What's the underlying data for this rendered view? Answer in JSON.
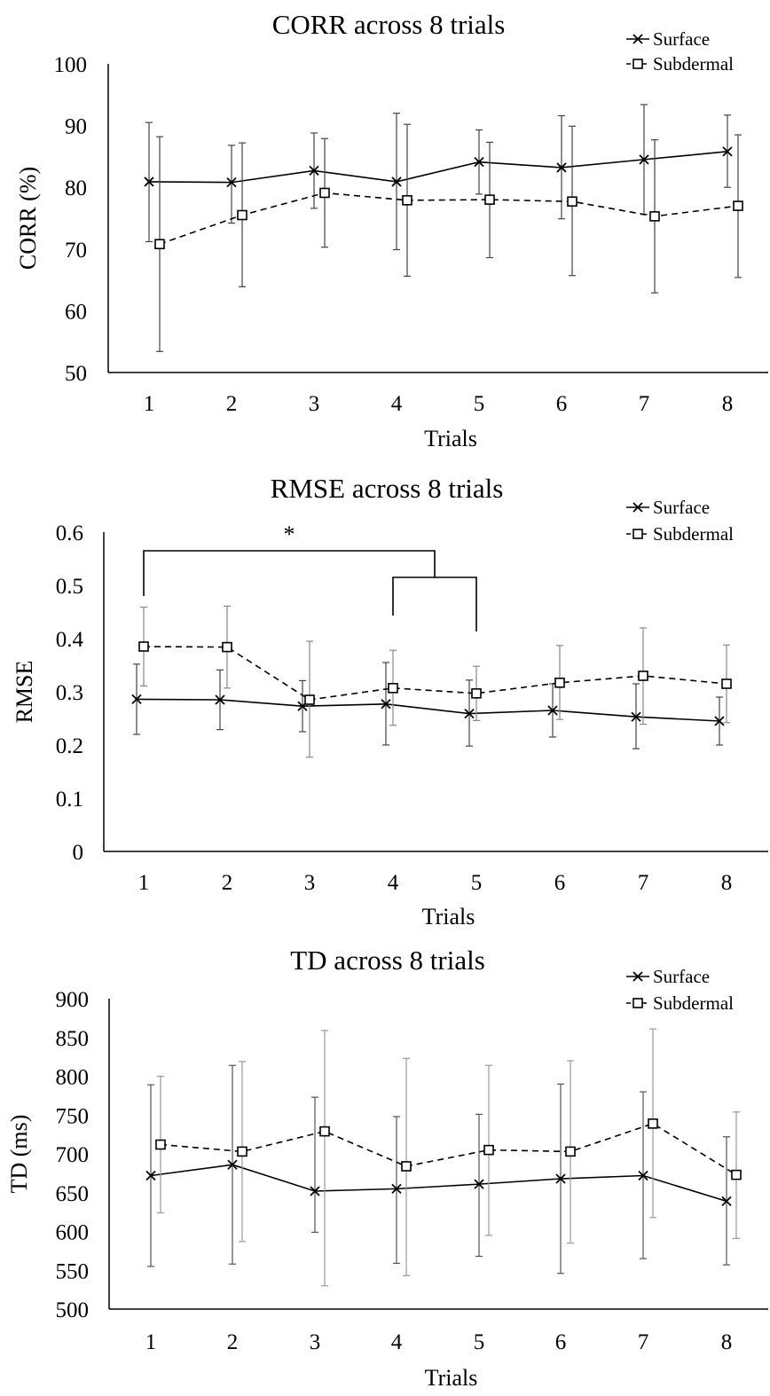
{
  "chart_data": [
    {
      "type": "line",
      "title": "CORR across 8 trials",
      "xlabel": "Trials",
      "ylabel": "CORR (%)",
      "categories": [
        "1",
        "2",
        "3",
        "4",
        "5",
        "6",
        "7",
        "8"
      ],
      "y_ticks": [
        "50",
        "60",
        "70",
        "80",
        "90",
        "100"
      ],
      "ylim": [
        50,
        100
      ],
      "grid": false,
      "legend_position": "top-right",
      "series": [
        {
          "name": "Surface",
          "marker": "x",
          "line_style": "solid",
          "error_bar_color": "#444444",
          "values": [
            80.9,
            80.8,
            82.7,
            80.9,
            84.1,
            83.2,
            84.5,
            85.8
          ],
          "error_low": [
            71.2,
            74.2,
            76.6,
            69.9,
            78.9,
            74.9,
            75.6,
            80.0
          ],
          "error_high": [
            90.5,
            86.8,
            88.8,
            92.0,
            89.3,
            91.6,
            93.4,
            91.7
          ]
        },
        {
          "name": "Subdermal",
          "marker": "square",
          "line_style": "dashed",
          "error_bar_color": "#444444",
          "values": [
            70.8,
            75.5,
            79.1,
            77.9,
            78.0,
            77.7,
            75.3,
            77.0
          ],
          "error_low": [
            53.4,
            63.9,
            70.3,
            65.6,
            68.6,
            65.7,
            62.9,
            65.4
          ],
          "error_high": [
            88.2,
            87.2,
            87.9,
            90.2,
            87.3,
            89.9,
            87.7,
            88.5
          ]
        }
      ]
    },
    {
      "type": "line",
      "title": "RMSE across 8 trials",
      "xlabel": "Trials",
      "ylabel": "RMSE",
      "categories": [
        "1",
        "2",
        "3",
        "4",
        "5",
        "6",
        "7",
        "8"
      ],
      "y_ticks": [
        "0",
        "0.1",
        "0.2",
        "0.3",
        "0.4",
        "0.5",
        "0.6"
      ],
      "ylim": [
        0,
        0.6
      ],
      "grid": false,
      "legend_position": "top-right",
      "series": [
        {
          "name": "Surface",
          "marker": "x",
          "line_style": "solid",
          "error_bar_color": "#444444",
          "values": [
            0.286,
            0.285,
            0.273,
            0.277,
            0.259,
            0.265,
            0.253,
            0.245
          ],
          "error_low": [
            0.22,
            0.229,
            0.225,
            0.2,
            0.198,
            0.215,
            0.193,
            0.2
          ],
          "error_high": [
            0.352,
            0.341,
            0.321,
            0.355,
            0.322,
            0.315,
            0.315,
            0.29
          ]
        },
        {
          "name": "Subdermal",
          "marker": "square",
          "line_style": "dashed",
          "error_bar_color": "#888888",
          "values": [
            0.385,
            0.384,
            0.285,
            0.307,
            0.297,
            0.317,
            0.33,
            0.315
          ],
          "error_low": [
            0.311,
            0.307,
            0.177,
            0.237,
            0.246,
            0.248,
            0.239,
            0.242
          ],
          "error_high": [
            0.459,
            0.461,
            0.395,
            0.378,
            0.348,
            0.387,
            0.42,
            0.388
          ]
        }
      ],
      "annotations": [
        {
          "type": "significance",
          "label": "*",
          "from_category": "1",
          "to_categories": [
            "4",
            "5"
          ]
        }
      ]
    },
    {
      "type": "line",
      "title": "TD across 8 trials",
      "xlabel": "Trials",
      "ylabel": "TD (ms)",
      "categories": [
        "1",
        "2",
        "3",
        "4",
        "5",
        "6",
        "7",
        "8"
      ],
      "y_ticks": [
        "500",
        "550",
        "600",
        "650",
        "700",
        "750",
        "800",
        "850",
        "900"
      ],
      "ylim": [
        500,
        900
      ],
      "grid": false,
      "legend_position": "top-right",
      "series": [
        {
          "name": "Surface",
          "marker": "x",
          "line_style": "solid",
          "error_bar_color": "#555555",
          "values": [
            672,
            686,
            652,
            655,
            661,
            668,
            672,
            639
          ],
          "error_low": [
            555,
            558,
            599,
            559,
            568,
            546,
            565,
            557
          ],
          "error_high": [
            789,
            814,
            773,
            748,
            751,
            790,
            780,
            722
          ]
        },
        {
          "name": "Subdermal",
          "marker": "square",
          "line_style": "dashed",
          "error_bar_color": "#999999",
          "values": [
            712,
            703,
            729,
            684,
            705,
            703,
            739,
            673
          ],
          "error_low": [
            624,
            587,
            530,
            543,
            595,
            585,
            618,
            591
          ],
          "error_high": [
            800,
            819,
            859,
            823,
            814,
            820,
            861,
            754
          ]
        }
      ]
    }
  ]
}
